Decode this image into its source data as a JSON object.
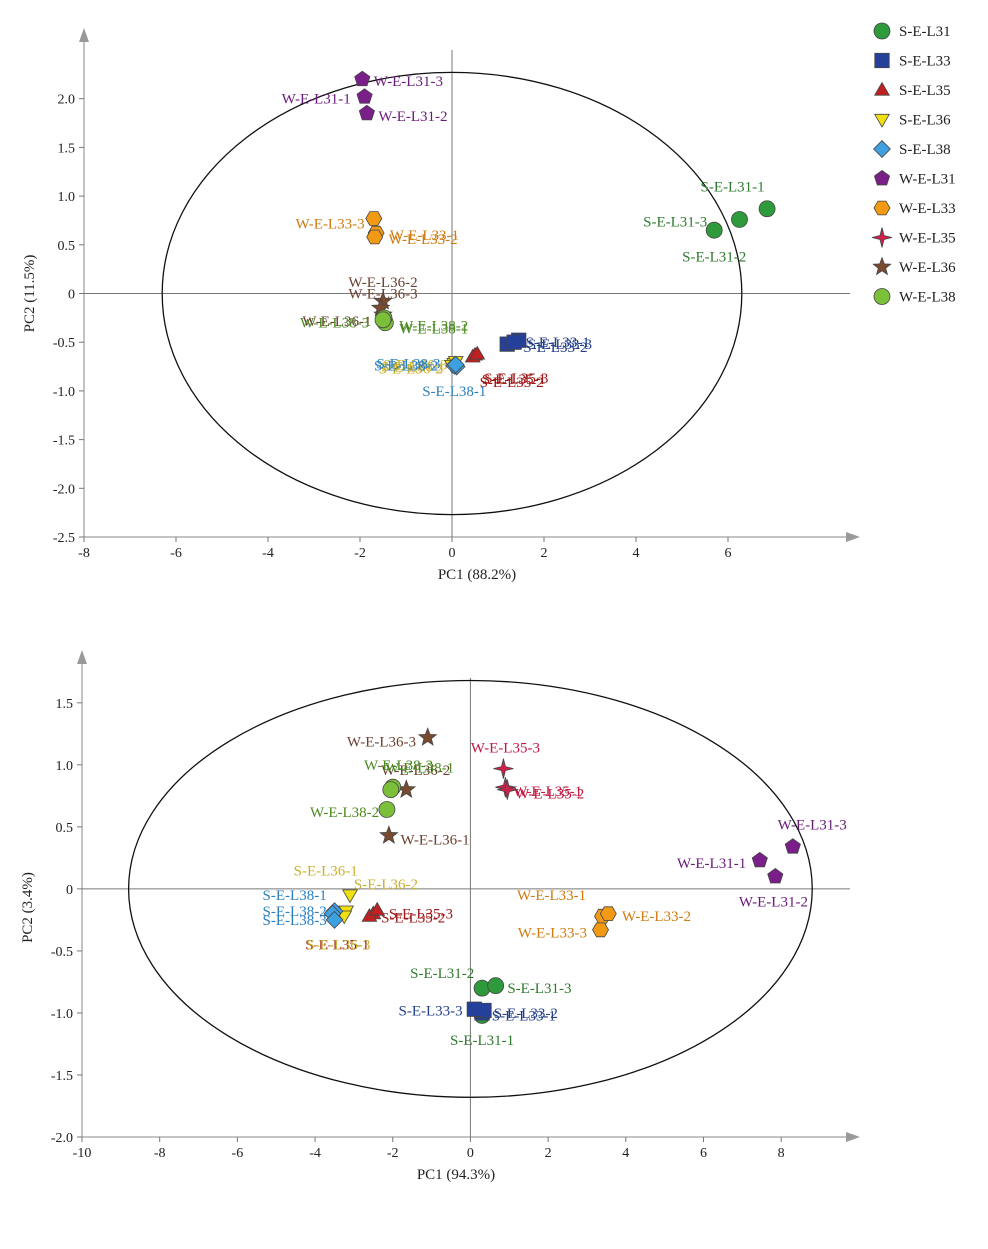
{
  "legend": {
    "items": [
      {
        "label": "S-E-L31",
        "marker": "circle",
        "color": "#2e9a3c"
      },
      {
        "label": "S-E-L33",
        "marker": "square",
        "color": "#24409a"
      },
      {
        "label": "S-E-L35",
        "marker": "triangle",
        "color": "#c02020"
      },
      {
        "label": "S-E-L36",
        "marker": "triangle-down",
        "color": "#f0e010"
      },
      {
        "label": "S-E-L38",
        "marker": "diamond",
        "color": "#3fa0e0"
      },
      {
        "label": "W-E-L31",
        "marker": "pentagon",
        "color": "#7a1e8a"
      },
      {
        "label": "W-E-L33",
        "marker": "hexagon",
        "color": "#f39a14"
      },
      {
        "label": "W-E-L35",
        "marker": "star4",
        "color": "#d0204a"
      },
      {
        "label": "W-E-L36",
        "marker": "star",
        "color": "#7a4a30"
      },
      {
        "label": "W-E-L38",
        "marker": "circle",
        "color": "#7cc03a"
      }
    ]
  },
  "chart_data": [
    {
      "type": "scatter",
      "xlabel": "PC1 (88.2%)",
      "ylabel": "PC2 (11.5%)",
      "xlim": [
        -8,
        8
      ],
      "ylim": [
        -2.5,
        2.5
      ],
      "xticks": [
        "-8",
        "-6",
        "-4",
        "-2",
        "0",
        "2",
        "4",
        "6"
      ],
      "yticks": [
        "-2.5",
        "-2.0",
        "-1.5",
        "-1.0",
        "-0.5",
        "0",
        "0.5",
        "1.0",
        "1.5",
        "2.0"
      ],
      "ellipse": {
        "rx": 6.3,
        "ry": 2.27
      },
      "points": [
        {
          "label": "S-E-L31-1",
          "x": 6.85,
          "y": 0.87,
          "group": 0,
          "lx": 6.1,
          "ly": 1.1,
          "anchor": "middle",
          "lcolor": "#2e7a2e"
        },
        {
          "label": "S-E-L31-2",
          "x": 5.7,
          "y": 0.65,
          "group": 0,
          "lx": 5.7,
          "ly": 0.38,
          "anchor": "middle",
          "lcolor": "#2e7a2e"
        },
        {
          "label": "S-E-L31-3",
          "x": 6.25,
          "y": 0.76,
          "group": 0,
          "lx": 5.55,
          "ly": 0.74,
          "anchor": "end",
          "lcolor": "#2e7a2e"
        },
        {
          "label": "S-E-L33-1",
          "x": 1.45,
          "y": -0.48,
          "group": 1,
          "lx": 1.6,
          "ly": -0.5,
          "anchor": "start",
          "lcolor": "#24408a"
        },
        {
          "label": "S-E-L33-2",
          "x": 1.2,
          "y": -0.52,
          "group": 1,
          "lx": 1.55,
          "ly": -0.55,
          "anchor": "start",
          "lcolor": "#24408a"
        },
        {
          "label": "S-E-L33-3",
          "x": 1.35,
          "y": -0.5,
          "group": 1,
          "lx": 1.65,
          "ly": -0.52,
          "anchor": "start",
          "lcolor": "#24408a"
        },
        {
          "label": "S-E-L35-1",
          "x": 0.5,
          "y": -0.63,
          "group": 2,
          "lx": 0.65,
          "ly": -0.88,
          "anchor": "start",
          "lcolor": "#a01818"
        },
        {
          "label": "S-E-L35-2",
          "x": 0.45,
          "y": -0.65,
          "group": 2,
          "lx": 0.6,
          "ly": -0.91,
          "anchor": "start",
          "lcolor": "#a01818"
        },
        {
          "label": "S-E-L35-3",
          "x": 0.55,
          "y": -0.62,
          "group": 2,
          "lx": 0.7,
          "ly": -0.87,
          "anchor": "start",
          "lcolor": "#a01818"
        },
        {
          "label": "S-E-L36-1",
          "x": 0.05,
          "y": -0.72,
          "group": 3,
          "lx": -0.15,
          "ly": -0.75,
          "anchor": "end",
          "lcolor": "#c8b030"
        },
        {
          "label": "S-E-L36-2",
          "x": 0.0,
          "y": -0.74,
          "group": 3,
          "lx": -0.2,
          "ly": -0.77,
          "anchor": "end",
          "lcolor": "#c8b030"
        },
        {
          "label": "S-E-L36-3",
          "x": 0.08,
          "y": -0.7,
          "group": 3,
          "lx": -0.1,
          "ly": -0.73,
          "anchor": "end",
          "lcolor": "#c8b030"
        },
        {
          "label": "S-E-L38-1",
          "x": 0.1,
          "y": -0.75,
          "group": 4,
          "lx": 0.05,
          "ly": -1.0,
          "anchor": "middle",
          "lcolor": "#2a80c0"
        },
        {
          "label": "S-E-L38-2",
          "x": 0.05,
          "y": -0.74,
          "group": 4,
          "lx": -0.3,
          "ly": -0.74,
          "anchor": "end",
          "lcolor": "#2a80c0"
        },
        {
          "label": "S-E-L38-3",
          "x": 0.08,
          "y": -0.73,
          "group": 4,
          "lx": -0.25,
          "ly": -0.72,
          "anchor": "end",
          "lcolor": "#2a80c0"
        },
        {
          "label": "W-E-L31-1",
          "x": -1.9,
          "y": 2.02,
          "group": 5,
          "lx": -2.2,
          "ly": 2.0,
          "anchor": "end",
          "lcolor": "#6a1a7a"
        },
        {
          "label": "W-E-L31-2",
          "x": -1.85,
          "y": 1.85,
          "group": 5,
          "lx": -1.6,
          "ly": 1.82,
          "anchor": "start",
          "lcolor": "#6a1a7a"
        },
        {
          "label": "W-E-L31-3",
          "x": -1.95,
          "y": 2.2,
          "group": 5,
          "lx": -1.7,
          "ly": 2.18,
          "anchor": "start",
          "lcolor": "#6a1a7a"
        },
        {
          "label": "W-E-L33-1",
          "x": -1.65,
          "y": 0.62,
          "group": 6,
          "lx": -1.35,
          "ly": 0.6,
          "anchor": "start",
          "lcolor": "#d07a10"
        },
        {
          "label": "W-E-L33-2",
          "x": -1.68,
          "y": 0.58,
          "group": 6,
          "lx": -1.38,
          "ly": 0.56,
          "anchor": "start",
          "lcolor": "#d07a10"
        },
        {
          "label": "W-E-L33-3",
          "x": -1.7,
          "y": 0.77,
          "group": 6,
          "lx": -1.9,
          "ly": 0.72,
          "anchor": "end",
          "lcolor": "#d07a10"
        },
        {
          "label": "W-E-L36-1",
          "x": -1.5,
          "y": -0.22,
          "group": 8,
          "lx": -1.75,
          "ly": -0.28,
          "anchor": "end",
          "lcolor": "#6a4030"
        },
        {
          "label": "W-E-L36-2",
          "x": -1.5,
          "y": -0.08,
          "group": 8,
          "lx": -1.5,
          "ly": 0.12,
          "anchor": "middle",
          "lcolor": "#6a4030"
        },
        {
          "label": "W-E-L36-3",
          "x": -1.55,
          "y": -0.15,
          "group": 8,
          "lx": -1.5,
          "ly": 0.0,
          "anchor": "middle",
          "lcolor": "#6a4030"
        },
        {
          "label": "W-E-L38-1",
          "x": -1.45,
          "y": -0.3,
          "group": 9,
          "lx": -1.15,
          "ly": -0.36,
          "anchor": "start",
          "lcolor": "#4a8a20"
        },
        {
          "label": "W-E-L38-2",
          "x": -1.48,
          "y": -0.25,
          "group": 9,
          "lx": -1.15,
          "ly": -0.33,
          "anchor": "start",
          "lcolor": "#4a8a20"
        },
        {
          "label": "W-E-L38-3",
          "x": -1.5,
          "y": -0.27,
          "group": 9,
          "lx": -1.8,
          "ly": -0.3,
          "anchor": "end",
          "lcolor": "#4a8a20"
        }
      ]
    },
    {
      "type": "scatter",
      "xlabel": "PC1 (94.3%)",
      "ylabel": "PC2 (3.4%)",
      "xlim": [
        -10,
        9
      ],
      "ylim": [
        -2.0,
        1.7
      ],
      "xticks": [
        "-10",
        "-8",
        "-6",
        "-4",
        "-2",
        "0",
        "2",
        "4",
        "6",
        "8"
      ],
      "yticks": [
        "-2.0",
        "-1.5",
        "-1.0",
        "-0.5",
        "0",
        "0.5",
        "1.0",
        "1.5"
      ],
      "ellipse": {
        "rx": 8.8,
        "ry": 1.68
      },
      "points": [
        {
          "label": "S-E-L31-1",
          "x": 0.3,
          "y": -1.02,
          "group": 0,
          "lx": 0.3,
          "ly": -1.22,
          "anchor": "middle",
          "lcolor": "#2e7a2e"
        },
        {
          "label": "S-E-L31-2",
          "x": 0.3,
          "y": -0.8,
          "group": 0,
          "lx": 0.1,
          "ly": -0.68,
          "anchor": "end",
          "lcolor": "#2e7a2e"
        },
        {
          "label": "S-E-L31-3",
          "x": 0.65,
          "y": -0.78,
          "group": 0,
          "lx": 0.95,
          "ly": -0.8,
          "anchor": "start",
          "lcolor": "#2e7a2e"
        },
        {
          "label": "S-E-L33-1",
          "x": 0.3,
          "y": -1.0,
          "group": 1,
          "lx": 0.55,
          "ly": -1.02,
          "anchor": "start",
          "lcolor": "#24408a"
        },
        {
          "label": "S-E-L33-2",
          "x": 0.35,
          "y": -0.98,
          "group": 1,
          "lx": 0.6,
          "ly": -1.0,
          "anchor": "start",
          "lcolor": "#24408a"
        },
        {
          "label": "S-E-L33-3",
          "x": 0.1,
          "y": -0.97,
          "group": 1,
          "lx": -0.2,
          "ly": -0.98,
          "anchor": "end",
          "lcolor": "#24408a"
        },
        {
          "label": "S-E-L35-1",
          "x": -2.5,
          "y": -0.2,
          "group": 2,
          "lx": -2.6,
          "ly": -0.45,
          "anchor": "end",
          "lcolor": "#a01818"
        },
        {
          "label": "S-E-L35-2",
          "x": -2.6,
          "y": -0.22,
          "group": 2,
          "lx": -2.3,
          "ly": -0.23,
          "anchor": "start",
          "lcolor": "#a01818"
        },
        {
          "label": "S-E-L35-3",
          "x": -2.4,
          "y": -0.17,
          "group": 2,
          "lx": -2.1,
          "ly": -0.2,
          "anchor": "start",
          "lcolor": "#a01818"
        },
        {
          "label": "S-E-L36-1",
          "x": -3.1,
          "y": -0.05,
          "group": 3,
          "lx": -2.9,
          "ly": 0.15,
          "anchor": "end",
          "lcolor": "#c8b030"
        },
        {
          "label": "S-E-L36-2",
          "x": -3.2,
          "y": -0.18,
          "group": 3,
          "lx": -3.0,
          "ly": 0.04,
          "anchor": "start",
          "lcolor": "#c8b030"
        },
        {
          "label": "S-E-L36-3",
          "x": -3.25,
          "y": -0.22,
          "group": 3,
          "lx": -3.4,
          "ly": -0.45,
          "anchor": "middle",
          "lcolor": "#c8b030"
        },
        {
          "label": "S-E-L38-1",
          "x": -3.5,
          "y": -0.18,
          "group": 4,
          "lx": -3.7,
          "ly": -0.05,
          "anchor": "end",
          "lcolor": "#2a80c0"
        },
        {
          "label": "S-E-L38-2",
          "x": -3.55,
          "y": -0.2,
          "group": 4,
          "lx": -3.7,
          "ly": -0.18,
          "anchor": "end",
          "lcolor": "#2a80c0"
        },
        {
          "label": "S-E-L38-3",
          "x": -3.5,
          "y": -0.25,
          "group": 4,
          "lx": -3.7,
          "ly": -0.25,
          "anchor": "end",
          "lcolor": "#2a80c0"
        },
        {
          "label": "W-E-L31-1",
          "x": 7.45,
          "y": 0.23,
          "group": 5,
          "lx": 7.1,
          "ly": 0.21,
          "anchor": "end",
          "lcolor": "#6a1a7a"
        },
        {
          "label": "W-E-L31-2",
          "x": 7.85,
          "y": 0.1,
          "group": 5,
          "lx": 7.8,
          "ly": -0.1,
          "anchor": "middle",
          "lcolor": "#6a1a7a"
        },
        {
          "label": "W-E-L31-3",
          "x": 8.3,
          "y": 0.34,
          "group": 5,
          "lx": 8.8,
          "ly": 0.52,
          "anchor": "middle",
          "lcolor": "#6a1a7a"
        },
        {
          "label": "W-E-L33-1",
          "x": 3.4,
          "y": -0.22,
          "group": 6,
          "lx": 1.2,
          "ly": -0.05,
          "anchor": "start",
          "lcolor": "#d07a10"
        },
        {
          "label": "W-E-L33-2",
          "x": 3.55,
          "y": -0.2,
          "group": 6,
          "lx": 3.9,
          "ly": -0.22,
          "anchor": "start",
          "lcolor": "#d07a10"
        },
        {
          "label": "W-E-L33-3",
          "x": 3.35,
          "y": -0.33,
          "group": 6,
          "lx": 3.0,
          "ly": -0.35,
          "anchor": "end",
          "lcolor": "#d07a10"
        },
        {
          "label": "W-E-L35-1",
          "x": 0.9,
          "y": 0.82,
          "group": 7,
          "lx": 1.1,
          "ly": 0.79,
          "anchor": "start",
          "lcolor": "#c01840"
        },
        {
          "label": "W-E-L35-2",
          "x": 0.95,
          "y": 0.8,
          "group": 7,
          "lx": 1.15,
          "ly": 0.77,
          "anchor": "start",
          "lcolor": "#c01840"
        },
        {
          "label": "W-E-L35-3",
          "x": 0.85,
          "y": 0.97,
          "group": 7,
          "lx": 0.9,
          "ly": 1.14,
          "anchor": "middle",
          "lcolor": "#c01840"
        },
        {
          "label": "W-E-L36-1",
          "x": -2.1,
          "y": 0.43,
          "group": 8,
          "lx": -1.8,
          "ly": 0.4,
          "anchor": "start",
          "lcolor": "#6a4030"
        },
        {
          "label": "W-E-L36-2",
          "x": -1.65,
          "y": 0.8,
          "group": 8,
          "lx": -2.3,
          "ly": 0.96,
          "anchor": "start",
          "lcolor": "#6a4030"
        },
        {
          "label": "W-E-L36-3",
          "x": -1.1,
          "y": 1.22,
          "group": 8,
          "lx": -1.4,
          "ly": 1.19,
          "anchor": "end",
          "lcolor": "#6a4030"
        },
        {
          "label": "W-E-L38-1",
          "x": -2.0,
          "y": 0.82,
          "group": 9,
          "lx": -2.2,
          "ly": 0.98,
          "anchor": "start",
          "lcolor": "#4a8a20"
        },
        {
          "label": "W-E-L38-2",
          "x": -2.15,
          "y": 0.64,
          "group": 9,
          "lx": -2.35,
          "ly": 0.62,
          "anchor": "end",
          "lcolor": "#4a8a20"
        },
        {
          "label": "W-E-L38-3",
          "x": -2.05,
          "y": 0.8,
          "group": 9,
          "lx": -1.85,
          "ly": 1.0,
          "anchor": "middle",
          "lcolor": "#4a8a20"
        }
      ]
    }
  ]
}
